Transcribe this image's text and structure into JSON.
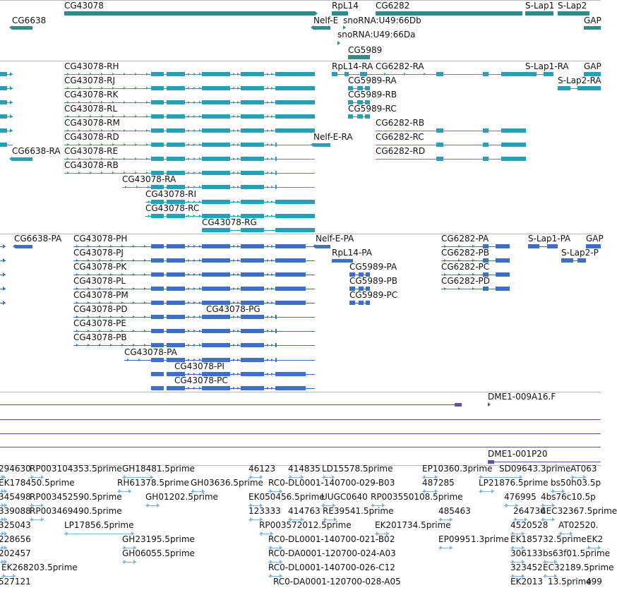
{
  "colors": {
    "gene": "#2e8b8b",
    "transcript": "#1da3c0",
    "protein": "#3a6fd2",
    "dna": "#6a4aab",
    "est": "#7bb4e0",
    "separator": "#b8b8b8"
  },
  "tracks": {
    "genes": {
      "features": [
        {
          "label": "CG43078"
        },
        {
          "label": "CG6638"
        },
        {
          "label": "RpL14"
        },
        {
          "label": "Nelf-E"
        },
        {
          "label": "snoRNA:U49:66Db"
        },
        {
          "label": "snoRNA:U49:66Da"
        },
        {
          "label": "CG5989"
        },
        {
          "label": "CG6282"
        },
        {
          "label": "S-Lap1"
        },
        {
          "label": "S-Lap2"
        },
        {
          "label": "GAP"
        }
      ]
    },
    "transcripts": {
      "features": [
        {
          "label": "CG43078-RH"
        },
        {
          "label": "CG43078-RJ"
        },
        {
          "label": "CG43078-RK"
        },
        {
          "label": "CG43078-RL"
        },
        {
          "label": "CG43078-RM"
        },
        {
          "label": "CG43078-RD"
        },
        {
          "label": "CG43078-RE"
        },
        {
          "label": "CG43078-RB"
        },
        {
          "label": "CG43078-RA"
        },
        {
          "label": "CG43078-RI"
        },
        {
          "label": "CG43078-RC"
        },
        {
          "label": "CG43078-RG"
        },
        {
          "label": "CG6638-RA"
        },
        {
          "label": "RpL14-RA"
        },
        {
          "label": "CG6282-RA"
        },
        {
          "label": "CG5989-RA"
        },
        {
          "label": "CG5989-RB"
        },
        {
          "label": "CG5989-RC"
        },
        {
          "label": "Nelf-E-RA"
        },
        {
          "label": "CG6282-RB"
        },
        {
          "label": "CG6282-RC"
        },
        {
          "label": "CG6282-RD"
        },
        {
          "label": "S-Lap1-RA"
        },
        {
          "label": "S-Lap2-RA"
        },
        {
          "label": "GAP"
        }
      ]
    },
    "proteins": {
      "features": [
        {
          "label": "CG6638-PA"
        },
        {
          "label": "CG43078-PH"
        },
        {
          "label": "CG43078-PJ"
        },
        {
          "label": "CG43078-PK"
        },
        {
          "label": "CG43078-PL"
        },
        {
          "label": "CG43078-PM"
        },
        {
          "label": "CG43078-PD"
        },
        {
          "label": "CG43078-PG"
        },
        {
          "label": "CG43078-PE"
        },
        {
          "label": "CG43078-PB"
        },
        {
          "label": "CG43078-PA"
        },
        {
          "label": "CG43078-PI"
        },
        {
          "label": "CG43078-PC"
        },
        {
          "label": "Nelf-E-PA"
        },
        {
          "label": "RpL14-PA"
        },
        {
          "label": "CG5989-PA"
        },
        {
          "label": "CG5989-PB"
        },
        {
          "label": "CG5989-PC"
        },
        {
          "label": "CG6282-PA"
        },
        {
          "label": "CG6282-PB"
        },
        {
          "label": "CG6282-PC"
        },
        {
          "label": "CG6282-PD"
        },
        {
          "label": "S-Lap1-PA"
        },
        {
          "label": "S-Lap2-P"
        },
        {
          "label": "GAP"
        }
      ]
    },
    "dna": {
      "features": [
        {
          "label": "DME1-009A16.F"
        },
        {
          "label": "DME1-001P20"
        }
      ]
    },
    "ests": {
      "features": [
        {
          "label": "294630"
        },
        {
          "label": "RP003104353.5prime"
        },
        {
          "label": "GH18481.5prime"
        },
        {
          "label": "46123"
        },
        {
          "label": "414835"
        },
        {
          "label": "LD15578.5prime"
        },
        {
          "label": "EP10360.3prime"
        },
        {
          "label": "SD09643.3prime"
        },
        {
          "label": "AT063"
        },
        {
          "label": "EK178450.5prime"
        },
        {
          "label": "RH61378.5prime"
        },
        {
          "label": "GH03636.5prime"
        },
        {
          "label": "RC0-DL0001-140700-029-B03"
        },
        {
          "label": "487285"
        },
        {
          "label": "LP21876.5prime"
        },
        {
          "label": "bs50h03.5p"
        },
        {
          "label": "345498"
        },
        {
          "label": "RP003452590.5prime"
        },
        {
          "label": "GH01202.5prime"
        },
        {
          "label": "EK050456.5prime"
        },
        {
          "label": "UUGC0640"
        },
        {
          "label": "RP003550108.5prime"
        },
        {
          "label": "476995"
        },
        {
          "label": "4bs76c10.5p"
        },
        {
          "label": "339088"
        },
        {
          "label": "RP003469490.5prime"
        },
        {
          "label": "123333"
        },
        {
          "label": "414763"
        },
        {
          "label": "RE39541.5prime"
        },
        {
          "label": "485463"
        },
        {
          "label": "264736"
        },
        {
          "label": "4EC32367.5prime"
        },
        {
          "label": "325043"
        },
        {
          "label": "LP17856.5prime"
        },
        {
          "label": "RP003572012.5prime"
        },
        {
          "label": "EK201734.5prime"
        },
        {
          "label": "4520528"
        },
        {
          "label": "AT02520."
        },
        {
          "label": "228656"
        },
        {
          "label": "GH23195.5prime"
        },
        {
          "label": "RC0-DL0001-140700-021-B02"
        },
        {
          "label": "EP0995"
        },
        {
          "label": "1.3prime"
        },
        {
          "label": "EK185732.5prime"
        },
        {
          "label": "EK2"
        },
        {
          "label": "202457"
        },
        {
          "label": "GH06055.5prime"
        },
        {
          "label": "RC0-DA0001-120700-024-A03"
        },
        {
          "label": "306133"
        },
        {
          "label": "bs63f01.5prime"
        },
        {
          "label": "EK268203.5prime"
        },
        {
          "label": "RC0-DL0001-140700-026-C12"
        },
        {
          "label": "323452"
        },
        {
          "label": "EC32189.5prime"
        },
        {
          "label": "527121"
        },
        {
          "label": "RC0-DA0001-120700-028-A05"
        },
        {
          "label": "EK2013"
        },
        {
          "label": "13.5prime"
        },
        {
          "label": "499"
        }
      ]
    }
  }
}
